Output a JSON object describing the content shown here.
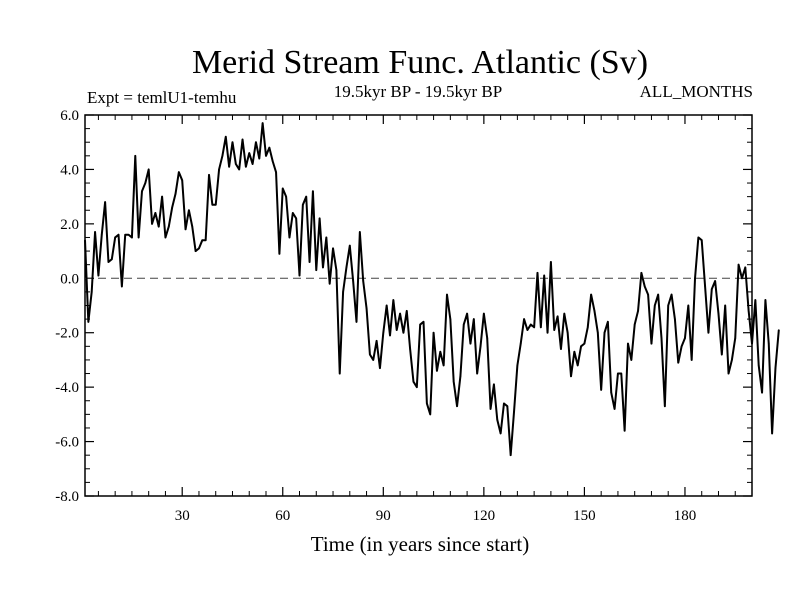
{
  "chart_data": {
    "type": "line",
    "title": "Merid Stream Func. Atlantic (Sv)",
    "subtitle_left": "Expt = temlU1-temhu",
    "subtitle_center": "19.5kyr BP - 19.5kyr BP",
    "subtitle_right": "ALL_MONTHS",
    "xlabel": "Time (in years since start)",
    "ylabel": "",
    "xlim": [
      1,
      200
    ],
    "ylim": [
      -8,
      6
    ],
    "x_ticks": [
      30,
      60,
      90,
      120,
      150,
      180
    ],
    "x_tick_labels": [
      "30",
      "60",
      "90",
      "120",
      "150",
      "180"
    ],
    "y_ticks": [
      6,
      4,
      2,
      0,
      -2,
      -4,
      -6,
      -8
    ],
    "y_tick_labels": [
      "6.0",
      "4.0",
      "2.0",
      "0.0",
      "-2.0",
      "-4.0",
      "-6.0",
      "-8.0"
    ],
    "reference_line": {
      "y": 0,
      "style": "dashed"
    },
    "series": [
      {
        "name": "Merid Stream Func. Atlantic",
        "x_start": 1,
        "x_step": 1,
        "values": [
          1.4,
          -1.6,
          -0.5,
          1.7,
          0.1,
          1.6,
          2.8,
          0.6,
          0.7,
          1.5,
          1.6,
          -0.3,
          1.6,
          1.6,
          1.5,
          4.5,
          1.5,
          3.2,
          3.5,
          4.0,
          2.0,
          2.4,
          1.9,
          3.0,
          1.5,
          1.9,
          2.6,
          3.1,
          3.9,
          3.6,
          1.8,
          2.5,
          1.9,
          1.0,
          1.1,
          1.4,
          1.4,
          3.8,
          2.7,
          2.7,
          4.0,
          4.5,
          5.2,
          4.1,
          5.0,
          4.2,
          4.0,
          5.1,
          4.1,
          4.6,
          4.2,
          5.0,
          4.4,
          5.7,
          4.5,
          4.8,
          4.3,
          3.9,
          0.9,
          3.3,
          3.0,
          1.5,
          2.4,
          2.2,
          0.1,
          2.7,
          3.0,
          0.6,
          3.2,
          0.3,
          2.2,
          0.4,
          1.5,
          -0.2,
          1.1,
          0.3,
          -3.5,
          -0.5,
          0.4,
          1.2,
          -0.1,
          -1.6,
          1.7,
          -0.1,
          -1.1,
          -2.8,
          -3.0,
          -2.3,
          -3.3,
          -2.0,
          -1.0,
          -2.1,
          -0.8,
          -1.9,
          -1.3,
          -2.0,
          -1.2,
          -2.6,
          -3.8,
          -4.0,
          -1.7,
          -1.6,
          -4.6,
          -5.0,
          -2.0,
          -3.4,
          -2.7,
          -3.2,
          -0.6,
          -1.5,
          -3.8,
          -4.7,
          -3.6,
          -1.7,
          -1.3,
          -2.4,
          -1.5,
          -3.5,
          -2.5,
          -1.3,
          -2.2,
          -4.8,
          -3.9,
          -5.2,
          -5.7,
          -4.6,
          -4.7,
          -6.5,
          -4.9,
          -3.2,
          -2.4,
          -1.5,
          -1.9,
          -1.7,
          -1.8,
          0.2,
          -1.8,
          0.1,
          -2.0,
          0.6,
          -1.9,
          -1.4,
          -2.6,
          -1.3,
          -2.0,
          -3.6,
          -2.7,
          -3.2,
          -2.5,
          -2.4,
          -1.8,
          -0.6,
          -1.2,
          -2.0,
          -4.1,
          -2.0,
          -1.6,
          -4.2,
          -4.8,
          -3.5,
          -3.5,
          -5.6,
          -2.4,
          -3.0,
          -1.7,
          -1.2,
          0.2,
          -0.3,
          -0.6,
          -2.4,
          -1.0,
          -0.6,
          -2.2,
          -4.7,
          -1.0,
          -0.6,
          -1.5,
          -3.1,
          -2.5,
          -2.2,
          -1.0,
          -3.0,
          0.0,
          1.5,
          1.4,
          -0.3,
          -2.0,
          -0.4,
          -0.1,
          -1.3,
          -2.8,
          -1.0,
          -3.5,
          -3.0,
          -2.2,
          0.5,
          0.0,
          0.4,
          -1.2,
          -2.4,
          -0.8,
          -3.2,
          -4.2,
          -0.8,
          -2.4,
          -5.7,
          -3.3,
          -1.9
        ]
      }
    ]
  }
}
